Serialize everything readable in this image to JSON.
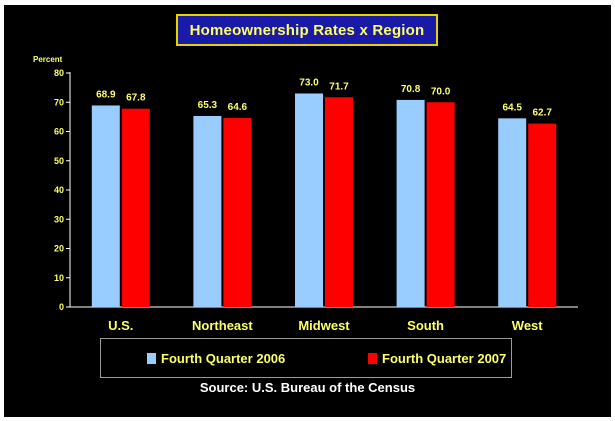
{
  "chart_data": {
    "type": "bar",
    "title": "Homeownership Rates x Region",
    "ylabel": "Percent",
    "xlabel": "",
    "ylim": [
      0,
      80
    ],
    "yticks": [
      "0",
      "10",
      "20",
      "30",
      "40",
      "50",
      "60",
      "70",
      "80"
    ],
    "categories": [
      "U.S.",
      "Northeast",
      "Midwest",
      "South",
      "West"
    ],
    "series": [
      {
        "name": "Fourth Quarter 2006",
        "color": "#99ccff",
        "values": [
          68.9,
          65.3,
          73.0,
          70.8,
          64.5
        ],
        "labels": [
          "68.9",
          "65.3",
          "73.0",
          "70.8",
          "64.5"
        ]
      },
      {
        "name": "Fourth Quarter 2007",
        "color": "#ff0000",
        "values": [
          67.8,
          64.6,
          71.7,
          70.0,
          62.7
        ],
        "labels": [
          "67.8",
          "64.6",
          "71.7",
          "70.0",
          "62.7"
        ]
      }
    ],
    "grid": false,
    "legend_position": "bottom",
    "source": "Source: U.S. Bureau of the Census"
  }
}
